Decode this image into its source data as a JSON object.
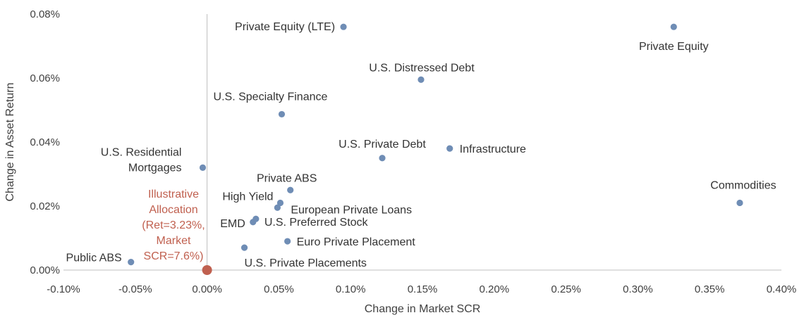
{
  "chart_data": {
    "type": "scatter",
    "xlabel": "Change in Market SCR",
    "ylabel": "Change in Asset Return",
    "xlim": [
      -0.1,
      0.4
    ],
    "ylim": [
      0.0,
      0.08
    ],
    "x_ticks": [
      "-0.10%",
      "-0.05%",
      "0.00%",
      "0.05%",
      "0.10%",
      "0.15%",
      "0.20%",
      "0.25%",
      "0.30%",
      "0.35%",
      "0.40%"
    ],
    "y_ticks": [
      "0.00%",
      "0.02%",
      "0.04%",
      "0.06%",
      "0.08%"
    ],
    "grid": false,
    "marker_color": "#6f8db5",
    "highlight_color": "#c0604f",
    "points": [
      {
        "label": "Private Equity (LTE)",
        "x": 0.095,
        "y": 0.076
      },
      {
        "label": "Private Equity",
        "x": 0.325,
        "y": 0.076
      },
      {
        "label": "U.S. Distressed Debt",
        "x": 0.149,
        "y": 0.0595
      },
      {
        "label": "U.S. Specialty Finance",
        "x": 0.052,
        "y": 0.0487
      },
      {
        "label": "Infrastructure",
        "x": 0.169,
        "y": 0.038
      },
      {
        "label": "U.S. Private Debt",
        "x": 0.122,
        "y": 0.035
      },
      {
        "label": [
          "U.S. Residential",
          "Mortgages"
        ],
        "x": -0.003,
        "y": 0.032
      },
      {
        "label": "Private ABS",
        "x": 0.058,
        "y": 0.025
      },
      {
        "label": "Commodities",
        "x": 0.371,
        "y": 0.021
      },
      {
        "label": "High Yield",
        "x": 0.051,
        "y": 0.021
      },
      {
        "label": "European Private Loans",
        "x": 0.049,
        "y": 0.0195
      },
      {
        "label": "U.S. Preferred Stock",
        "x": 0.034,
        "y": 0.016
      },
      {
        "label": "EMD",
        "x": 0.032,
        "y": 0.015
      },
      {
        "label": "Euro Private Placement",
        "x": 0.056,
        "y": 0.009
      },
      {
        "label": "U.S. Private Placements",
        "x": 0.026,
        "y": 0.007
      },
      {
        "label": "Public ABS",
        "x": -0.053,
        "y": 0.0025
      }
    ],
    "highlight": {
      "label": [
        "Illustrative",
        "Allocation",
        "(Ret=3.23%,",
        "Market",
        "SCR=7.6%)"
      ],
      "x": 0.0,
      "y": 0.0
    }
  }
}
